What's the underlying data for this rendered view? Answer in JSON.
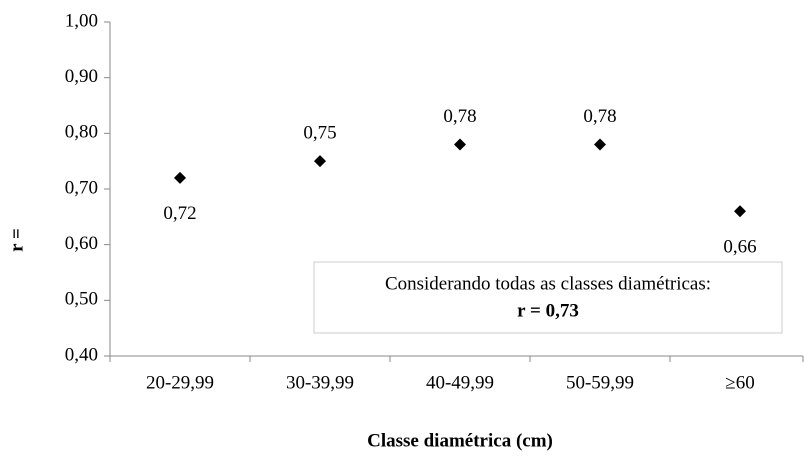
{
  "chart_data": {
    "type": "scatter",
    "x_label": "Classe diamétrica (cm)",
    "y_label": "r =",
    "categories": [
      "20-29,99",
      "30-39,99",
      "40-49,99",
      "50-59,99",
      "≥60"
    ],
    "values": [
      0.72,
      0.75,
      0.78,
      0.78,
      0.66
    ],
    "value_labels": [
      "0,72",
      "0,75",
      "0,78",
      "0,78",
      "0,66"
    ],
    "color": "#000000",
    "ylim": [
      0.4,
      1.0
    ],
    "yticks": [
      {
        "value": 0.4,
        "label": "0,40"
      },
      {
        "value": 0.5,
        "label": "0,50"
      },
      {
        "value": 0.6,
        "label": "0,60"
      },
      {
        "value": 0.7,
        "label": "0,70"
      },
      {
        "value": 0.8,
        "label": "0,80"
      },
      {
        "value": 0.9,
        "label": "0,90"
      },
      {
        "value": 1.0,
        "label": "1,00"
      }
    ],
    "annotations": [
      "Considerando todas as classes diamétricas:",
      "r = 0,73"
    ]
  }
}
